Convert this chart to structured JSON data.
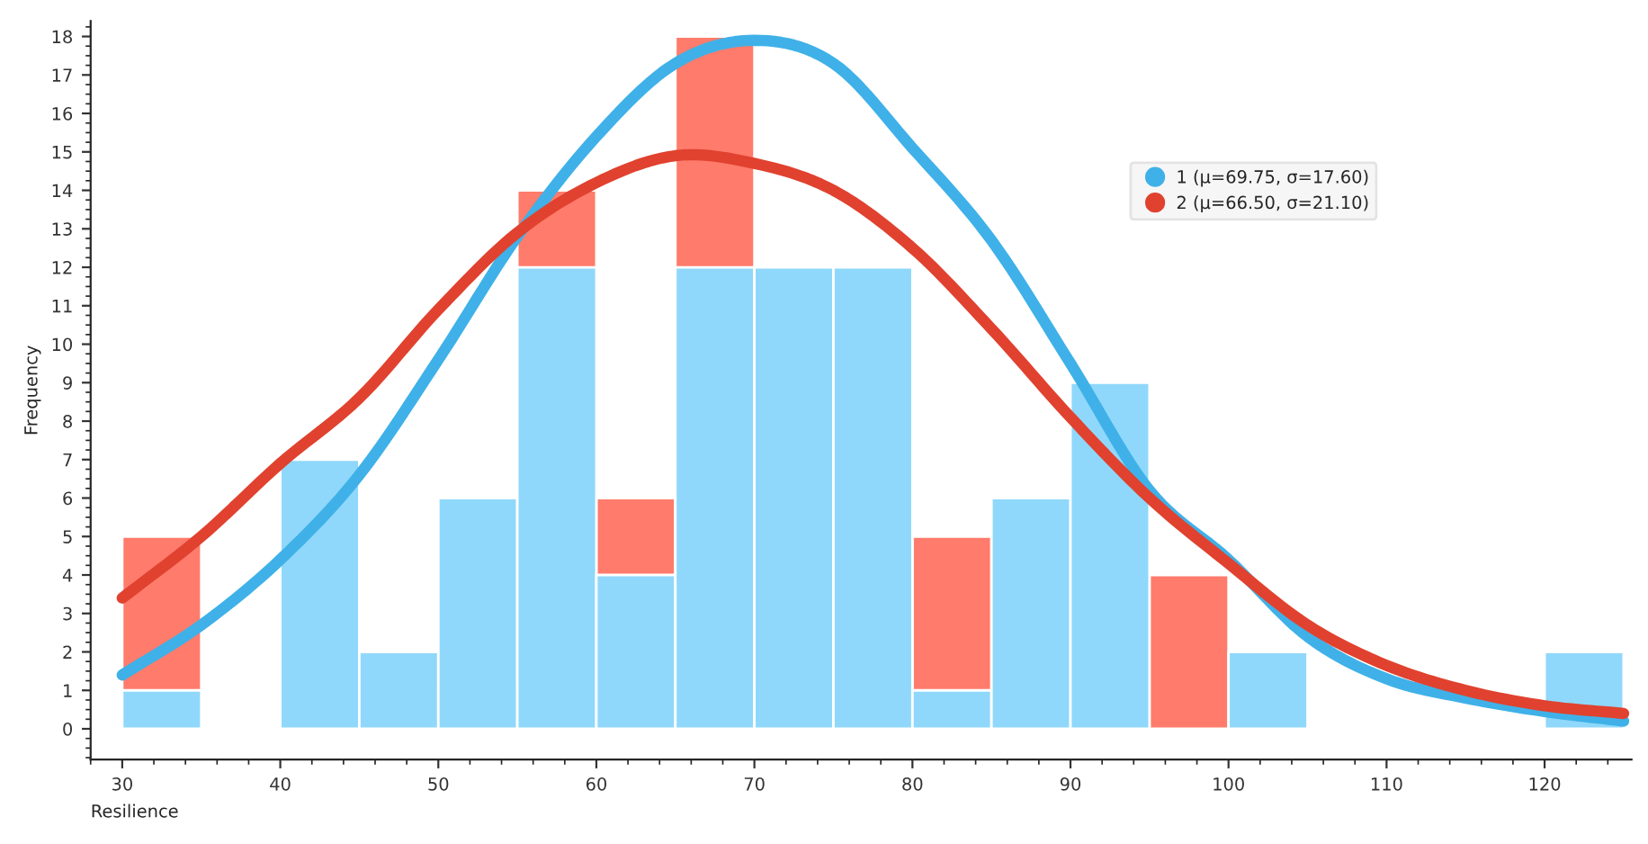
{
  "chart_data": {
    "type": "histogram",
    "xlabel": "Resilience",
    "ylabel": "Frequency",
    "bins": [
      30,
      35,
      40,
      45,
      50,
      55,
      60,
      65,
      70,
      75,
      80,
      85,
      90,
      95,
      100,
      105,
      110,
      115,
      120,
      125
    ],
    "series": [
      {
        "color": "#ff7b6b",
        "values": [
          5,
          0,
          null,
          null,
          null,
          14,
          6,
          18,
          null,
          null,
          5,
          null,
          null,
          4,
          null,
          0,
          0,
          0,
          null
        ]
      },
      {
        "color": "#8fd8fb",
        "values": [
          1,
          0,
          7,
          2,
          6,
          12,
          4,
          12,
          12,
          12,
          1,
          6,
          9,
          0,
          2,
          0,
          0,
          0,
          2
        ]
      },
      {
        "type": "line",
        "name": "1 (μ=69.75, σ=17.60)",
        "color": "#3fb1e8",
        "x": [
          30,
          35,
          40,
          45,
          50,
          55,
          60,
          65,
          70,
          75,
          80,
          85,
          90,
          95,
          100,
          105,
          110,
          115,
          120,
          125
        ],
        "values": [
          1.4,
          2.7,
          4.4,
          6.6,
          9.6,
          12.8,
          15.4,
          17.3,
          17.9,
          17.3,
          15.1,
          12.7,
          9.5,
          6.2,
          4.4,
          2.4,
          1.3,
          0.8,
          0.45,
          0.2
        ]
      },
      {
        "type": "line",
        "name": "2 (μ=66.50, σ=21.10)",
        "color": "#e0422f",
        "x": [
          30,
          35,
          40,
          45,
          50,
          55,
          60,
          65,
          70,
          75,
          80,
          85,
          90,
          95,
          100,
          105,
          110,
          115,
          120,
          125
        ],
        "values": [
          3.4,
          5.0,
          6.9,
          8.6,
          10.9,
          12.9,
          14.2,
          14.9,
          14.7,
          14.0,
          12.5,
          10.4,
          8.1,
          6.0,
          4.3,
          2.7,
          1.65,
          1.0,
          0.6,
          0.4
        ]
      }
    ],
    "xlim": [
      28,
      125.5
    ],
    "ylim": [
      -0.8,
      18.4
    ],
    "xticks": [
      30,
      40,
      50,
      60,
      70,
      80,
      90,
      100,
      110,
      120
    ],
    "yticks": [
      0,
      1,
      2,
      3,
      4,
      5,
      6,
      7,
      8,
      9,
      10,
      11,
      12,
      13,
      14,
      15,
      16,
      17,
      18
    ],
    "grid": false,
    "legend": "top right"
  }
}
